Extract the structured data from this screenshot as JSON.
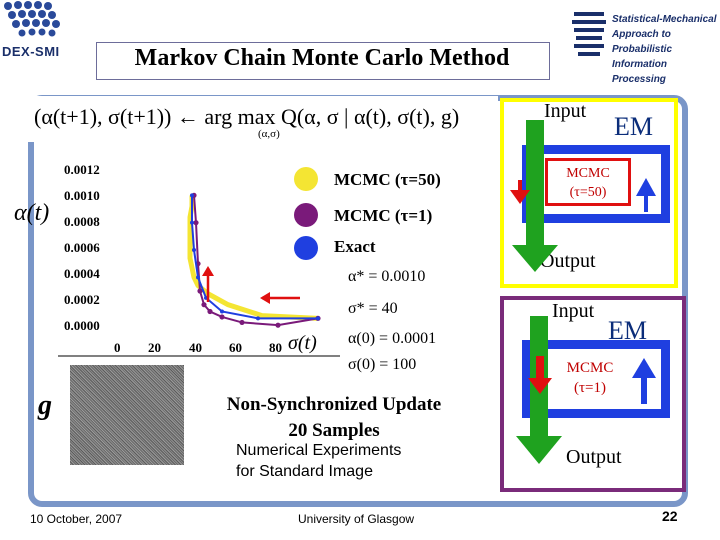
{
  "header": {
    "logo_left_text": "DEX-SMI",
    "logo_right_lines": [
      "Statistical-Mechanical",
      "Approach to Probabilistic",
      "Information Processing"
    ],
    "title": "Markov Chain Monte Carlo Method"
  },
  "formula": {
    "text": "(α(t+1), σ(t+1)) ← arg max Q(α, σ | α(t), σ(t), g)",
    "argmax_sub": "(α,σ)"
  },
  "chart_data": {
    "type": "scatter",
    "x_ticks": [
      "0",
      "20",
      "40",
      "60",
      "80"
    ],
    "y_ticks": [
      "0.0012",
      "0.0010",
      "0.0008",
      "0.0006",
      "0.0004",
      "0.0002",
      "0.0000"
    ],
    "ylabel": "α(t)",
    "xlabel": "σ(t)",
    "xlim": [
      0,
      100
    ],
    "ylim": [
      0,
      0.0012
    ],
    "series": [
      {
        "name": "MCMC (τ=50)",
        "color": "#f4e533",
        "x": [
          100,
          72,
          55,
          45,
          40,
          38,
          37,
          36,
          36,
          36,
          36,
          36,
          37,
          37
        ],
        "y": [
          0.0001,
          0.00012,
          0.0002,
          0.00028,
          0.00034,
          0.0004,
          0.00047,
          0.00054,
          0.0006,
          0.00068,
          0.00076,
          0.00084,
          0.00092,
          0.001
        ]
      },
      {
        "name": "MCMC (τ=1)",
        "color": "#7a1a7a",
        "x": [
          100,
          80,
          62,
          52,
          46,
          43,
          41,
          40,
          39,
          38
        ],
        "y": [
          0.0001,
          5e-05,
          7e-05,
          0.00011,
          0.00015,
          0.0002,
          0.0003,
          0.0005,
          0.0008,
          0.001
        ]
      },
      {
        "name": "Exact",
        "color": "#1f3fe0",
        "x": [
          100,
          70,
          52,
          44,
          40,
          38,
          37,
          37
        ],
        "y": [
          0.0001,
          0.0001,
          0.00015,
          0.00025,
          0.0004,
          0.0006,
          0.0008,
          0.001
        ]
      }
    ]
  },
  "legend": [
    {
      "label": "MCMC (τ=50)",
      "color": "#f4e533"
    },
    {
      "label": "MCMC (τ=1)",
      "color": "#7a1a7a"
    },
    {
      "label": "Exact",
      "color": "#1f3fe0"
    }
  ],
  "params": {
    "alpha_star": "α* = 0.0010",
    "sigma_star": "σ* = 40",
    "alpha0": "α(0) = 0.0001",
    "sigma0": "σ(0) = 100"
  },
  "g_label": "g",
  "captions": {
    "line1": "Non-Synchronized Update",
    "line2": "20 Samples",
    "line3": "Numerical Experiments",
    "line4": "for Standard Image"
  },
  "diagram1": {
    "input": "Input",
    "em": "EM",
    "mcmc_line1": "MCMC",
    "mcmc_line2": "(τ=50)",
    "output": "Output"
  },
  "diagram2": {
    "input": "Input",
    "em": "EM",
    "mcmc_line1": "MCMC",
    "mcmc_line2": "(τ=1)",
    "output": "Output"
  },
  "footer": {
    "date": "10 October, 2007",
    "university": "University of Glasgow",
    "page": "22"
  },
  "colors": {
    "frame": "#7a96c8",
    "green_arrow": "#1fa21f",
    "blue_loop": "#1f3fe0",
    "red": "#e01010"
  }
}
